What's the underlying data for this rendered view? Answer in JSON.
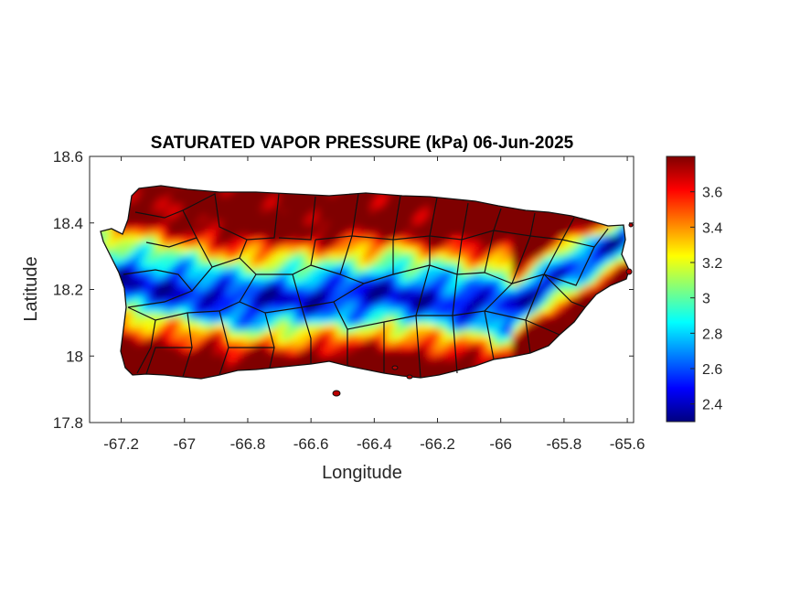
{
  "chart_data": {
    "type": "heatmap",
    "title": "SATURATED VAPOR PRESSURE (kPa) 06-Jun-2025",
    "xlabel": "Longitude",
    "ylabel": "Latitude",
    "xlim": [
      -67.3,
      -65.58
    ],
    "ylim": [
      17.8,
      18.6
    ],
    "xticks": [
      -67.2,
      -67,
      -66.8,
      -66.6,
      -66.4,
      -66.2,
      -66,
      -65.8,
      -65.6
    ],
    "xtick_labels": [
      "-67.2",
      "-67",
      "-66.8",
      "-66.6",
      "-66.4",
      "-66.2",
      "-66",
      "-65.8",
      "-65.6"
    ],
    "yticks": [
      17.8,
      18,
      18.2,
      18.4,
      18.6
    ],
    "ytick_labels": [
      "17.8",
      "18",
      "18.2",
      "18.4",
      "18.6"
    ],
    "colormap": "jet",
    "colorbar": {
      "range": [
        2.3,
        3.8
      ],
      "ticks": [
        2.4,
        2.6,
        2.8,
        3,
        3.2,
        3.4,
        3.6
      ],
      "tick_labels": [
        "2.4",
        "2.6",
        "2.8",
        "3",
        "3.2",
        "3.4",
        "3.6"
      ],
      "placement": "right"
    },
    "field_description_values": {
      "central_mountain_minimum": 2.4,
      "coastal_maximum": 3.8
    },
    "grid": false
  }
}
